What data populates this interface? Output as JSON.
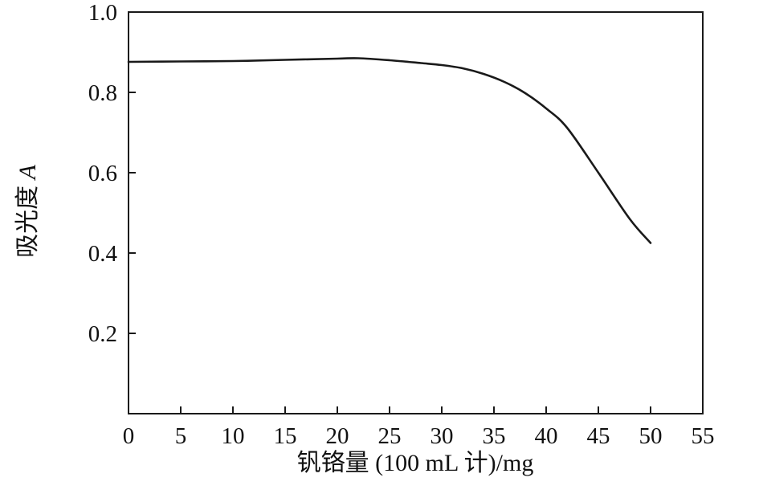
{
  "chart_data": {
    "type": "line",
    "title": "",
    "xlabel": "钒铬量 (100 mL 计)/mg",
    "ylabel_text": "吸光度 ",
    "ylabel_var": "A",
    "xlim": [
      0,
      55
    ],
    "ylim": [
      0,
      1.0
    ],
    "xticks": [
      0,
      5,
      10,
      15,
      20,
      25,
      30,
      35,
      40,
      45,
      50,
      55
    ],
    "yticks": [
      0.2,
      0.4,
      0.6,
      0.8,
      1.0
    ],
    "grid": false,
    "legend": "none",
    "frame": "full-box",
    "line_color": "#1a1a1a",
    "series": [
      {
        "name": "absorbance",
        "x": [
          0,
          5,
          10,
          15,
          20,
          22,
          25,
          28,
          30,
          32,
          34,
          36,
          38,
          40,
          42,
          45,
          48,
          50
        ],
        "y": [
          0.876,
          0.877,
          0.878,
          0.881,
          0.884,
          0.885,
          0.88,
          0.873,
          0.868,
          0.86,
          0.846,
          0.826,
          0.798,
          0.76,
          0.712,
          0.6,
          0.485,
          0.425
        ]
      }
    ]
  }
}
